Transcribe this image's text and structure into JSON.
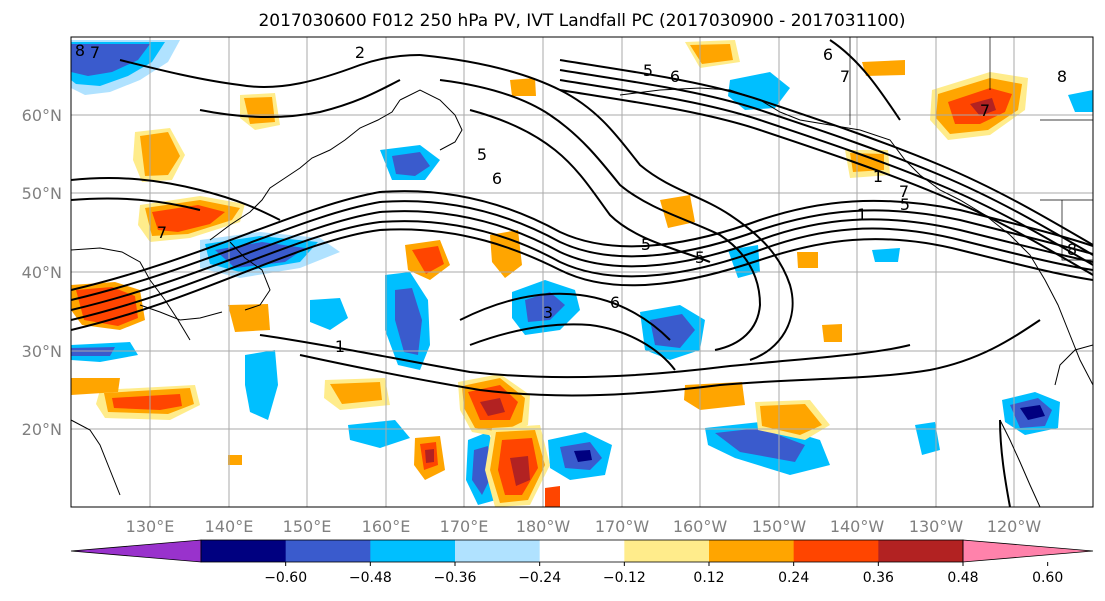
{
  "title": "2017030600 F012 250 hPa PV, IVT Landfall PC (2017030900 - 2017031100)",
  "lat_labels": [
    "60°N",
    "50°N",
    "40°N",
    "30°N",
    "20°N"
  ],
  "lon_labels": [
    "130°E",
    "140°E",
    "150°E",
    "160°E",
    "170°E",
    "180°W",
    "170°W",
    "160°W",
    "150°W",
    "140°W",
    "130°W",
    "120°W"
  ],
  "colorbar": {
    "colors": [
      "#9932cc",
      "#000080",
      "#3a5bcd",
      "#00bfff",
      "#b0e2ff",
      "#ffffff",
      "#ffec8b",
      "#ffa500",
      "#ff4500",
      "#b22222",
      "#ff82ab"
    ],
    "tick_labels": [
      "−0.60",
      "−0.48",
      "−0.36",
      "−0.24",
      "−0.12",
      "0.12",
      "0.24",
      "0.36",
      "0.48",
      "0.60"
    ]
  },
  "contour_labels": [
    "2",
    "6",
    "7",
    "8",
    "5",
    "1",
    "1",
    "6",
    "5",
    "5",
    "7",
    "1",
    "6",
    "7",
    "5",
    "8",
    "7",
    "6",
    "5",
    "3",
    "7",
    "8"
  ]
}
